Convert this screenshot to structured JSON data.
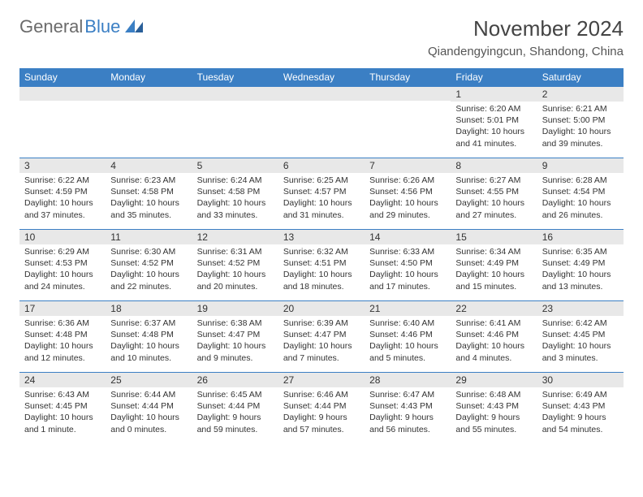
{
  "logo": {
    "text_gray": "General",
    "text_blue": "Blue"
  },
  "title": "November 2024",
  "location": "Qiandengyingcun, Shandong, China",
  "colors": {
    "header_bg": "#3b7fc4",
    "header_text": "#ffffff",
    "daynum_bg": "#e8e8e8",
    "border": "#3b7fc4",
    "logo_gray": "#6b6b6b",
    "logo_blue": "#3b7fc4"
  },
  "weekdays": [
    "Sunday",
    "Monday",
    "Tuesday",
    "Wednesday",
    "Thursday",
    "Friday",
    "Saturday"
  ],
  "weeks": [
    [
      null,
      null,
      null,
      null,
      null,
      {
        "n": "1",
        "sr": "6:20 AM",
        "ss": "5:01 PM",
        "dl": "10 hours and 41 minutes."
      },
      {
        "n": "2",
        "sr": "6:21 AM",
        "ss": "5:00 PM",
        "dl": "10 hours and 39 minutes."
      }
    ],
    [
      {
        "n": "3",
        "sr": "6:22 AM",
        "ss": "4:59 PM",
        "dl": "10 hours and 37 minutes."
      },
      {
        "n": "4",
        "sr": "6:23 AM",
        "ss": "4:58 PM",
        "dl": "10 hours and 35 minutes."
      },
      {
        "n": "5",
        "sr": "6:24 AM",
        "ss": "4:58 PM",
        "dl": "10 hours and 33 minutes."
      },
      {
        "n": "6",
        "sr": "6:25 AM",
        "ss": "4:57 PM",
        "dl": "10 hours and 31 minutes."
      },
      {
        "n": "7",
        "sr": "6:26 AM",
        "ss": "4:56 PM",
        "dl": "10 hours and 29 minutes."
      },
      {
        "n": "8",
        "sr": "6:27 AM",
        "ss": "4:55 PM",
        "dl": "10 hours and 27 minutes."
      },
      {
        "n": "9",
        "sr": "6:28 AM",
        "ss": "4:54 PM",
        "dl": "10 hours and 26 minutes."
      }
    ],
    [
      {
        "n": "10",
        "sr": "6:29 AM",
        "ss": "4:53 PM",
        "dl": "10 hours and 24 minutes."
      },
      {
        "n": "11",
        "sr": "6:30 AM",
        "ss": "4:52 PM",
        "dl": "10 hours and 22 minutes."
      },
      {
        "n": "12",
        "sr": "6:31 AM",
        "ss": "4:52 PM",
        "dl": "10 hours and 20 minutes."
      },
      {
        "n": "13",
        "sr": "6:32 AM",
        "ss": "4:51 PM",
        "dl": "10 hours and 18 minutes."
      },
      {
        "n": "14",
        "sr": "6:33 AM",
        "ss": "4:50 PM",
        "dl": "10 hours and 17 minutes."
      },
      {
        "n": "15",
        "sr": "6:34 AM",
        "ss": "4:49 PM",
        "dl": "10 hours and 15 minutes."
      },
      {
        "n": "16",
        "sr": "6:35 AM",
        "ss": "4:49 PM",
        "dl": "10 hours and 13 minutes."
      }
    ],
    [
      {
        "n": "17",
        "sr": "6:36 AM",
        "ss": "4:48 PM",
        "dl": "10 hours and 12 minutes."
      },
      {
        "n": "18",
        "sr": "6:37 AM",
        "ss": "4:48 PM",
        "dl": "10 hours and 10 minutes."
      },
      {
        "n": "19",
        "sr": "6:38 AM",
        "ss": "4:47 PM",
        "dl": "10 hours and 9 minutes."
      },
      {
        "n": "20",
        "sr": "6:39 AM",
        "ss": "4:47 PM",
        "dl": "10 hours and 7 minutes."
      },
      {
        "n": "21",
        "sr": "6:40 AM",
        "ss": "4:46 PM",
        "dl": "10 hours and 5 minutes."
      },
      {
        "n": "22",
        "sr": "6:41 AM",
        "ss": "4:46 PM",
        "dl": "10 hours and 4 minutes."
      },
      {
        "n": "23",
        "sr": "6:42 AM",
        "ss": "4:45 PM",
        "dl": "10 hours and 3 minutes."
      }
    ],
    [
      {
        "n": "24",
        "sr": "6:43 AM",
        "ss": "4:45 PM",
        "dl": "10 hours and 1 minute."
      },
      {
        "n": "25",
        "sr": "6:44 AM",
        "ss": "4:44 PM",
        "dl": "10 hours and 0 minutes."
      },
      {
        "n": "26",
        "sr": "6:45 AM",
        "ss": "4:44 PM",
        "dl": "9 hours and 59 minutes."
      },
      {
        "n": "27",
        "sr": "6:46 AM",
        "ss": "4:44 PM",
        "dl": "9 hours and 57 minutes."
      },
      {
        "n": "28",
        "sr": "6:47 AM",
        "ss": "4:43 PM",
        "dl": "9 hours and 56 minutes."
      },
      {
        "n": "29",
        "sr": "6:48 AM",
        "ss": "4:43 PM",
        "dl": "9 hours and 55 minutes."
      },
      {
        "n": "30",
        "sr": "6:49 AM",
        "ss": "4:43 PM",
        "dl": "9 hours and 54 minutes."
      }
    ]
  ],
  "labels": {
    "sunrise": "Sunrise:",
    "sunset": "Sunset:",
    "daylight": "Daylight:"
  }
}
